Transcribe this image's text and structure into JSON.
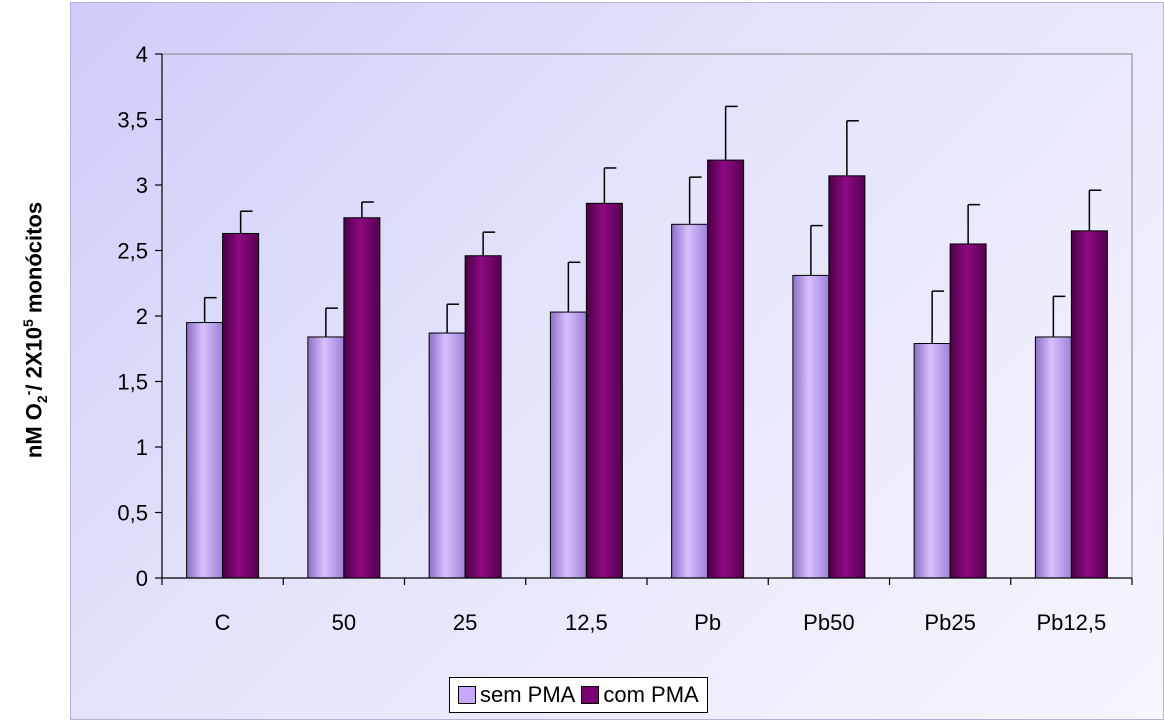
{
  "chart_data": {
    "type": "bar",
    "title": "",
    "xlabel": "",
    "ylabel": {
      "main": "nM O",
      "sub": "2",
      "sup1": "-",
      "mid": "/ 2X10",
      "sup2": "5",
      "end": " monócitos"
    },
    "categories": [
      "C",
      "50",
      "25",
      "12,5",
      "Pb",
      "Pb50",
      "Pb25",
      "Pb12,5"
    ],
    "ylim": [
      0,
      4
    ],
    "yticks": [
      "0",
      "0,5",
      "1",
      "1,5",
      "2",
      "2,5",
      "3",
      "3,5",
      "4"
    ],
    "grid": false,
    "legend_position": "bottom",
    "series": [
      {
        "name": "sem PMA",
        "color": "#c9a8ff",
        "values": [
          1.95,
          1.84,
          1.87,
          2.03,
          2.7,
          2.31,
          1.79,
          1.84
        ],
        "errors": [
          0.19,
          0.22,
          0.22,
          0.38,
          0.36,
          0.38,
          0.4,
          0.31
        ]
      },
      {
        "name": "com PMA",
        "color": "#7a0070",
        "values": [
          2.63,
          2.75,
          2.46,
          2.86,
          3.19,
          3.07,
          2.55,
          2.65
        ],
        "errors": [
          0.17,
          0.12,
          0.18,
          0.27,
          0.41,
          0.42,
          0.3,
          0.31
        ]
      }
    ]
  }
}
